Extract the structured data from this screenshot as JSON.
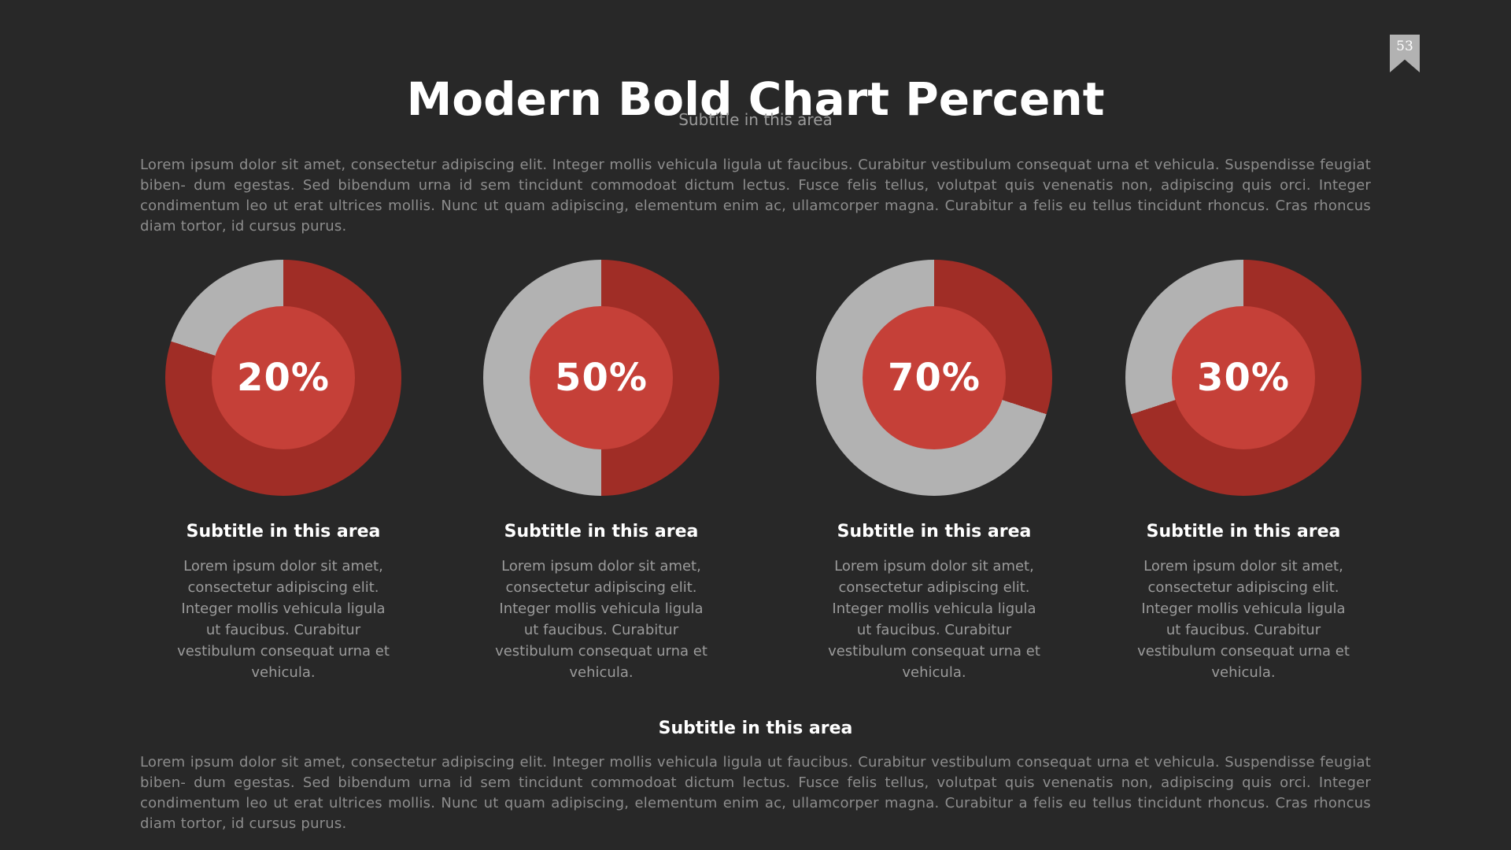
{
  "slide": {
    "number": "53",
    "title": "Modern Bold Chart Percent",
    "subtitle": "Subtitle in this area",
    "intro_paragraph": "Lorem ipsum dolor sit amet, consectetur adipiscing elit. Integer mollis vehicula ligula ut faucibus. Curabitur vestibulum consequat urna et vehicula. Suspendisse feugiat biben- dum egestas. Sed bibendum urna id sem tincidunt commodoat dictum lectus. Fusce felis tellus, volutpat quis venenatis non, adipiscing quis orci. Integer condimentum leo ut erat ultrices mollis. Nunc ut quam adipiscing, elementum enim ac, ullamcorper magna. Curabitur a felis eu tellus tincidunt rhoncus. Cras rhoncus diam tortor, id cursus purus.",
    "footer_heading": "Subtitle in this area",
    "footer_paragraph": "Lorem ipsum dolor sit amet, consectetur adipiscing elit. Integer mollis vehicula ligula ut faucibus. Curabitur vestibulum consequat urna et vehicula. Suspendisse feugiat biben- dum egestas. Sed bibendum urna id sem tincidunt commodoat dictum lectus. Fusce felis tellus, volutpat quis venenatis non, adipiscing quis orci. Integer condimentum leo ut erat ultrices mollis. Nunc ut quam adipiscing, elementum enim ac, ullamcorper magna. Curabitur a felis eu tellus tincidunt rhoncus. Cras rhoncus diam tortor, id cursus purus."
  },
  "colors": {
    "background": "#282828",
    "slide_number_badge": "#b2b2b2",
    "heading_text": "#ffffff",
    "body_text": "#8d8d8d",
    "subtitle_text": "#9b9b9b"
  },
  "chart_data": {
    "type": "pie",
    "variant": "donut-percent",
    "title": "Modern Bold Chart Percent",
    "subtitle": "Subtitle in this area",
    "legend_position": "none",
    "colors": {
      "filled": "#a02d26",
      "track": "#b2b2b2",
      "hub": "#c54038"
    },
    "charts": [
      {
        "percent": 20,
        "center_label": "20%",
        "caption": "Subtitle in this area",
        "description": "Lorem ipsum dolor sit amet, consectetur adipiscing elit. Integer mollis vehicula ligula ut faucibus. Curabitur vestibulum consequat urna et vehicula."
      },
      {
        "percent": 50,
        "center_label": "50%",
        "caption": "Subtitle in this area",
        "description": "Lorem ipsum dolor sit amet, consectetur adipiscing elit. Integer mollis vehicula ligula ut faucibus. Curabitur vestibulum consequat urna et vehicula."
      },
      {
        "percent": 70,
        "center_label": "70%",
        "caption": "Subtitle in this area",
        "description": "Lorem ipsum dolor sit amet, consectetur adipiscing elit. Integer mollis vehicula ligula ut faucibus. Curabitur vestibulum consequat urna et vehicula."
      },
      {
        "percent": 30,
        "center_label": "30%",
        "caption": "Subtitle in this area",
        "description": "Lorem ipsum dolor sit amet, consectetur adipiscing elit. Integer mollis vehicula ligula ut faucibus. Curabitur vestibulum consequat urna et vehicula."
      }
    ]
  }
}
